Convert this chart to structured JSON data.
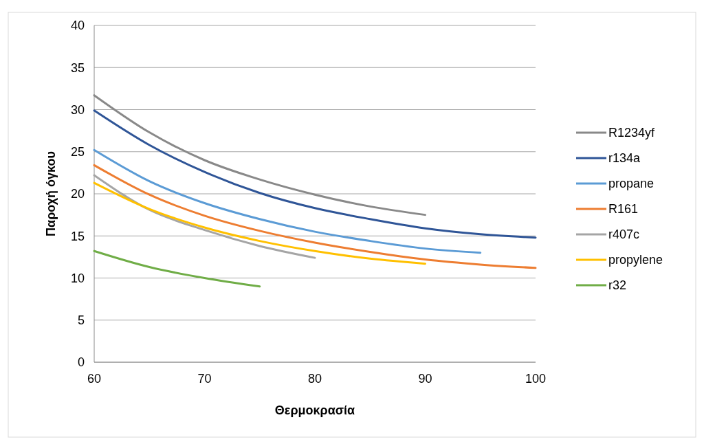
{
  "chart_data": {
    "type": "line",
    "xlabel": "Θερμοκρασία",
    "ylabel": "Παροχή όγκου",
    "xlim": [
      60,
      100
    ],
    "xticks": [
      60,
      70,
      80,
      90,
      100
    ],
    "ylim": [
      0,
      40
    ],
    "yticks": [
      0,
      5,
      10,
      15,
      20,
      25,
      30,
      35,
      40
    ],
    "grid": "y",
    "legend": "right",
    "marker": "none",
    "line_style": "solid",
    "x": [
      60,
      65,
      70,
      75,
      80,
      85,
      90,
      95,
      100
    ],
    "series": [
      {
        "name": "R1234yf",
        "color": "#898989",
        "values": [
          31.7,
          27.3,
          24.0,
          21.7,
          19.9,
          18.5,
          17.5,
          null,
          null
        ]
      },
      {
        "name": "r134a",
        "color": "#2f5597",
        "values": [
          29.9,
          25.8,
          22.6,
          20.1,
          18.3,
          17.0,
          15.9,
          15.2,
          14.8
        ]
      },
      {
        "name": "propane",
        "color": "#5b9bd5",
        "values": [
          25.2,
          21.5,
          18.9,
          17.0,
          15.5,
          14.4,
          13.5,
          13.0,
          null
        ]
      },
      {
        "name": "R161",
        "color": "#ed7d31",
        "values": [
          23.4,
          19.9,
          17.4,
          15.6,
          14.2,
          13.1,
          12.2,
          11.6,
          11.2
        ]
      },
      {
        "name": "r407c",
        "color": "#a5a5a5",
        "values": [
          22.2,
          18.1,
          15.7,
          13.8,
          12.4,
          null,
          null,
          null,
          null
        ]
      },
      {
        "name": "propylene",
        "color": "#ffc000",
        "values": [
          21.3,
          18.2,
          16.0,
          14.4,
          13.2,
          12.3,
          11.7,
          null,
          null
        ]
      },
      {
        "name": "r32",
        "color": "#70ad47",
        "values": [
          13.2,
          11.3,
          10.0,
          9.0,
          null,
          null,
          null,
          null,
          null
        ]
      }
    ]
  }
}
